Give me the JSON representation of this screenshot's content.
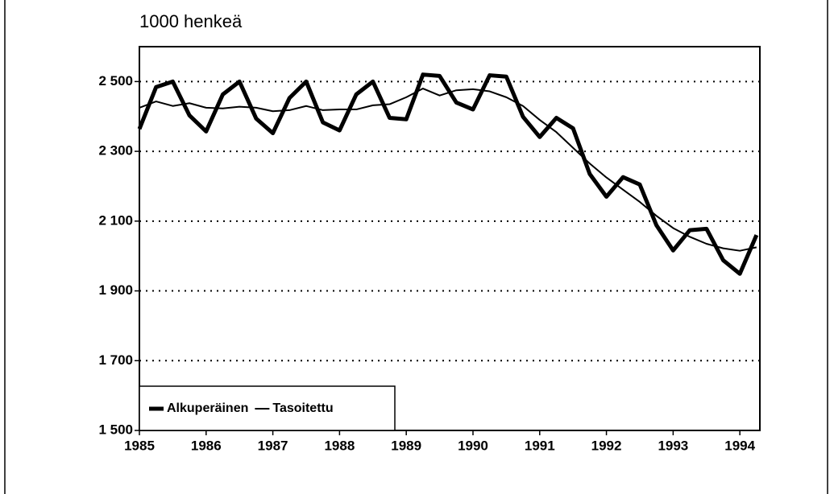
{
  "chart_data": {
    "type": "line",
    "title": "1000 henkeä",
    "x": [
      1985,
      1985.25,
      1985.5,
      1985.75,
      1986,
      1986.25,
      1986.5,
      1986.75,
      1987,
      1987.25,
      1987.5,
      1987.75,
      1988,
      1988.25,
      1988.5,
      1988.75,
      1989,
      1989.25,
      1989.5,
      1989.75,
      1990,
      1990.25,
      1990.5,
      1990.75,
      1991,
      1991.25,
      1991.5,
      1991.75,
      1992,
      1992.25,
      1992.5,
      1992.75,
      1993,
      1993.25,
      1993.5,
      1993.75,
      1994,
      1994.25
    ],
    "series": [
      {
        "name": "Alkuperäinen",
        "color": "#000000",
        "width": 5,
        "values": [
          2364,
          2484,
          2500,
          2403,
          2357,
          2463,
          2500,
          2394,
          2352,
          2453,
          2500,
          2383,
          2360,
          2463,
          2500,
          2396,
          2392,
          2520,
          2516,
          2440,
          2420,
          2518,
          2514,
          2399,
          2341,
          2396,
          2366,
          2235,
          2170,
          2226,
          2205,
          2088,
          2016,
          2074,
          2078,
          1988,
          1949,
          2060
        ]
      },
      {
        "name": "Tasoitettu",
        "color": "#000000",
        "width": 2,
        "values": [
          2425,
          2443,
          2430,
          2438,
          2425,
          2423,
          2428,
          2425,
          2415,
          2418,
          2430,
          2418,
          2420,
          2420,
          2432,
          2435,
          2455,
          2480,
          2460,
          2475,
          2478,
          2472,
          2455,
          2430,
          2390,
          2355,
          2310,
          2265,
          2225,
          2190,
          2155,
          2115,
          2080,
          2055,
          2035,
          2022,
          2015,
          2025
        ]
      }
    ],
    "xlim": [
      1985,
      1994.3
    ],
    "xticks": [
      1985,
      1986,
      1987,
      1988,
      1989,
      1990,
      1991,
      1992,
      1993,
      1994
    ],
    "ylim": [
      1500,
      2600
    ],
    "yticks": [
      {
        "value": 1500,
        "label": "1 500"
      },
      {
        "value": 1700,
        "label": "1 700"
      },
      {
        "value": 1900,
        "label": "1 900"
      },
      {
        "value": 2100,
        "label": "2 100"
      },
      {
        "value": 2300,
        "label": "2 300"
      },
      {
        "value": 2500,
        "label": "2 500"
      }
    ],
    "grid": true,
    "legend": "lower left"
  }
}
